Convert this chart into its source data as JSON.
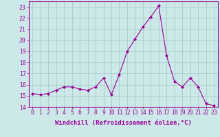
{
  "x": [
    0,
    1,
    2,
    3,
    4,
    5,
    6,
    7,
    8,
    9,
    10,
    11,
    12,
    13,
    14,
    15,
    16,
    17,
    18,
    19,
    20,
    21,
    22,
    23
  ],
  "y": [
    15.2,
    15.1,
    15.2,
    15.5,
    15.8,
    15.8,
    15.6,
    15.5,
    15.8,
    16.6,
    15.1,
    16.9,
    19.0,
    20.1,
    21.2,
    22.1,
    23.1,
    18.6,
    16.3,
    15.8,
    16.6,
    15.8,
    14.3,
    14.1
  ],
  "line_color": "#990099",
  "marker": "D",
  "marker_size": 2.0,
  "bg_color": "#cce8e8",
  "grid_color": "#aacccc",
  "xlabel": "Windchill (Refroidissement éolien,°C)",
  "ylim": [
    14,
    23.5
  ],
  "xlim": [
    -0.5,
    23.5
  ],
  "yticks": [
    14,
    15,
    16,
    17,
    18,
    19,
    20,
    21,
    22,
    23
  ],
  "xticks": [
    0,
    1,
    2,
    3,
    4,
    5,
    6,
    7,
    8,
    9,
    10,
    11,
    12,
    13,
    14,
    15,
    16,
    17,
    18,
    19,
    20,
    21,
    22,
    23
  ],
  "tick_color": "#990099",
  "xlabel_fontsize": 6.5,
  "tick_fontsize": 5.8,
  "linewidth": 0.8
}
